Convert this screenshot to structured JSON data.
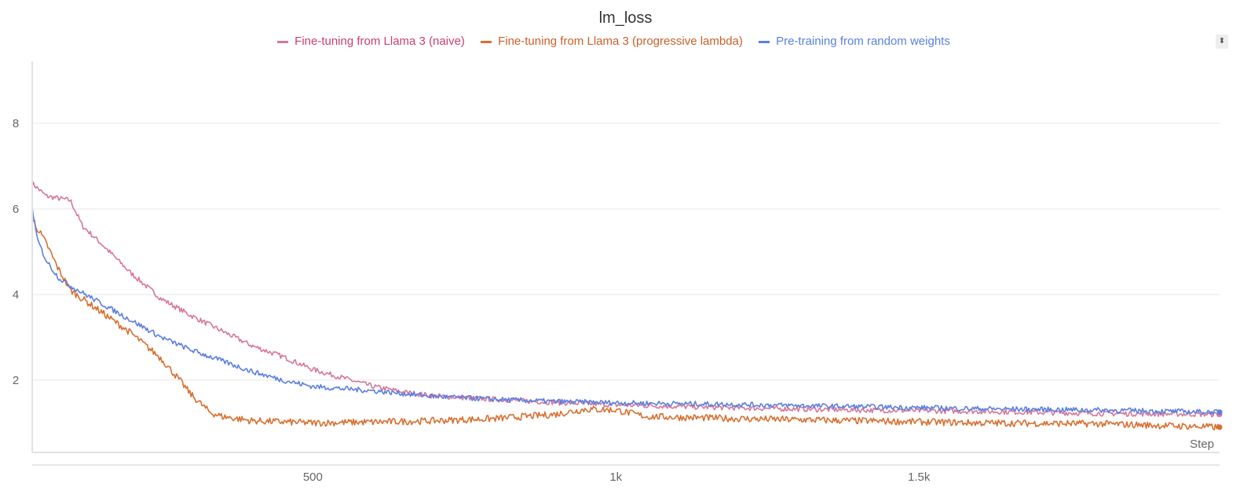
{
  "chart_data": {
    "type": "line",
    "title": "lm_loss",
    "xlabel": "Step",
    "ylabel": "",
    "xlim": [
      37,
      1996
    ],
    "ylim": [
      0.31,
      9.45
    ],
    "grid": true,
    "legend_position": "top",
    "x_ticks": [
      {
        "value": 500,
        "label": "500"
      },
      {
        "value": 1000,
        "label": "1k"
      },
      {
        "value": 1500,
        "label": "1.5k"
      }
    ],
    "y_ticks": [
      {
        "value": 2,
        "label": "2"
      },
      {
        "value": 4,
        "label": "4"
      },
      {
        "value": 6,
        "label": "6"
      },
      {
        "value": 8,
        "label": "8"
      }
    ],
    "series": [
      {
        "name": "Fine-tuning from Llama 3 (naive)",
        "color": "#d6779a",
        "label_color": "#c9406f",
        "x": [
          37,
          60,
          100,
          120,
          150,
          200,
          250,
          300,
          350,
          400,
          450,
          500,
          550,
          600,
          650,
          700,
          800,
          900,
          1000,
          1200,
          1400,
          1600,
          1800,
          1996
        ],
        "y": [
          6.6,
          6.3,
          6.2,
          5.6,
          5.2,
          4.5,
          3.9,
          3.5,
          3.15,
          2.8,
          2.55,
          2.25,
          2.05,
          1.85,
          1.72,
          1.63,
          1.55,
          1.48,
          1.42,
          1.35,
          1.3,
          1.27,
          1.22,
          1.2
        ]
      },
      {
        "name": "Fine-tuning from Llama 3 (progressive lambda)",
        "color": "#d86f30",
        "label_color": "#c8602a",
        "x": [
          37,
          60,
          80,
          100,
          150,
          200,
          250,
          280,
          300,
          330,
          350,
          400,
          500,
          600,
          700,
          800,
          900,
          950,
          1000,
          1050,
          1200,
          1400,
          1600,
          1800,
          1996
        ],
        "y": [
          5.75,
          5.2,
          4.6,
          4.1,
          3.6,
          3.1,
          2.5,
          2.0,
          1.65,
          1.25,
          1.15,
          1.05,
          1.0,
          1.02,
          1.05,
          1.1,
          1.2,
          1.32,
          1.3,
          1.15,
          1.1,
          1.05,
          1.0,
          0.98,
          0.9
        ]
      },
      {
        "name": "Pre-training from random weights",
        "color": "#5b7fe0",
        "label_color": "#5b7fe0",
        "x": [
          37,
          45,
          60,
          80,
          100,
          150,
          200,
          250,
          300,
          350,
          400,
          450,
          500,
          600,
          700,
          800,
          900,
          1000,
          1200,
          1400,
          1600,
          1800,
          1996
        ],
        "y": [
          6.05,
          5.3,
          4.8,
          4.4,
          4.2,
          3.8,
          3.4,
          3.0,
          2.7,
          2.45,
          2.2,
          2.0,
          1.85,
          1.75,
          1.62,
          1.55,
          1.5,
          1.47,
          1.43,
          1.38,
          1.33,
          1.3,
          1.25
        ]
      }
    ]
  }
}
